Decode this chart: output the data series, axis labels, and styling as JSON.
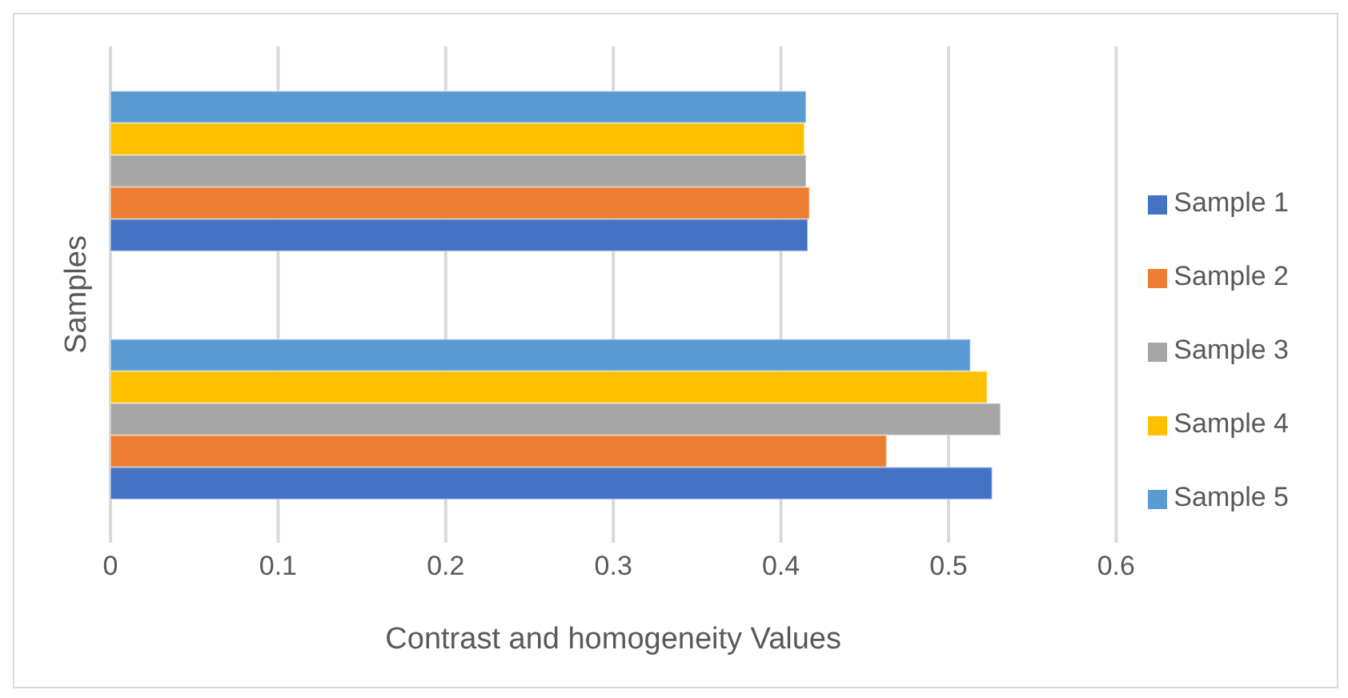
{
  "chart_data": {
    "type": "bar",
    "orientation": "horizontal",
    "xlabel": "Contrast and homogeneity Values",
    "ylabel": "Samples",
    "categories": [
      null,
      null
    ],
    "series": [
      {
        "name": "Sample 1",
        "color": "#4472c4",
        "values": [
          0.416,
          0.526
        ]
      },
      {
        "name": "Sample 2",
        "color": "#ed7d31",
        "values": [
          0.417,
          0.463
        ]
      },
      {
        "name": "Sample 3",
        "color": "#a5a5a5",
        "values": [
          0.415,
          0.531
        ]
      },
      {
        "name": "Sample 4",
        "color": "#ffc000",
        "values": [
          0.414,
          0.523
        ]
      },
      {
        "name": "Sample 5",
        "color": "#5b9bd5",
        "values": [
          0.415,
          0.513
        ]
      }
    ],
    "xlim": [
      0,
      0.6
    ],
    "xticks": [
      0,
      0.1,
      0.2,
      0.3,
      0.4,
      0.5,
      0.6
    ],
    "grid": "x",
    "legend": "right"
  }
}
